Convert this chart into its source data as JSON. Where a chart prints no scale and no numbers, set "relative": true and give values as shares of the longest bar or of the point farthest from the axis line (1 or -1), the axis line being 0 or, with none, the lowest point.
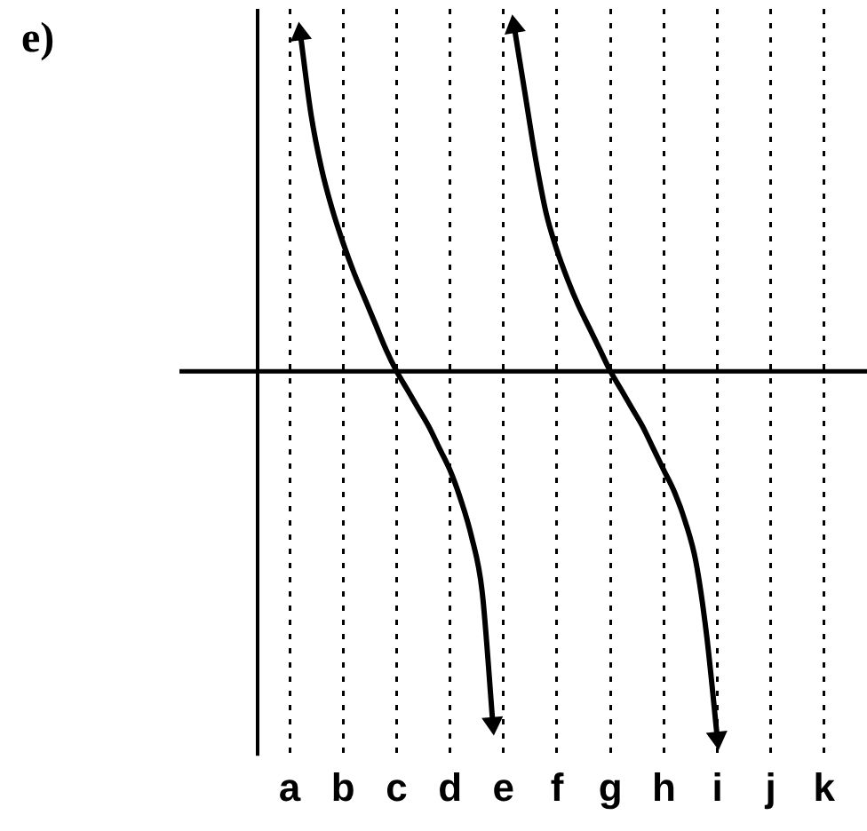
{
  "chart_data": {
    "type": "line",
    "title": "e)",
    "relative": true,
    "categories": [
      null,
      null,
      null,
      "a",
      null,
      null,
      null,
      null,
      "b",
      null,
      null,
      null,
      null,
      "c",
      null,
      null,
      null,
      null,
      "d",
      null,
      null,
      null,
      null,
      "e",
      null,
      null,
      null,
      null,
      "f",
      null,
      null,
      null,
      null,
      "g",
      null,
      null,
      null,
      null,
      "h",
      null,
      null,
      null,
      null,
      "i",
      null,
      null,
      null,
      null,
      "j",
      null,
      null,
      null,
      null,
      "k",
      null,
      null,
      null,
      null
    ],
    "grid": "x",
    "marker": "none",
    "line_style": "solid",
    "series": [
      {
        "color": "#000000",
        "values": [
          null,
          null,
          null,
          null,
          0.92,
          0.7,
          0.55,
          0.44,
          0.35,
          0.27,
          0.2,
          0.13,
          0.06,
          0,
          -0.05,
          -0.1,
          -0.15,
          -0.21,
          -0.27,
          -0.35,
          -0.45,
          -0.6,
          -0.96,
          null,
          null,
          null,
          null,
          null,
          null,
          null,
          null,
          null,
          null,
          null,
          null,
          null,
          null,
          null,
          null,
          null,
          null,
          null,
          null,
          null,
          null,
          null,
          null,
          null,
          null,
          null,
          null,
          null,
          null,
          null,
          null,
          null,
          null,
          null
        ]
      },
      {
        "color": "#000000",
        "values": [
          null,
          null,
          null,
          null,
          null,
          null,
          null,
          null,
          null,
          null,
          null,
          null,
          null,
          null,
          null,
          null,
          null,
          null,
          null,
          null,
          null,
          null,
          null,
          null,
          0.94,
          0.76,
          0.58,
          0.43,
          0.33,
          0.25,
          0.18,
          0.12,
          0.06,
          0,
          -0.05,
          -0.1,
          -0.15,
          -0.21,
          -0.27,
          -0.33,
          -0.41,
          -0.52,
          -0.72,
          -1,
          null,
          null,
          null,
          null,
          null,
          null,
          null,
          null,
          null,
          null,
          null,
          null,
          null,
          null
        ]
      }
    ]
  }
}
